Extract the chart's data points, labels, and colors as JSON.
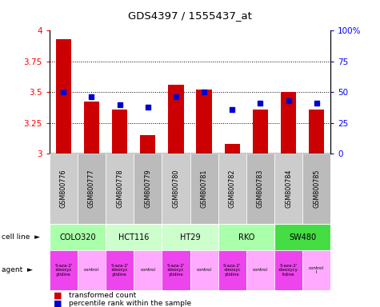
{
  "title": "GDS4397 / 1555437_at",
  "samples": [
    "GSM800776",
    "GSM800777",
    "GSM800778",
    "GSM800779",
    "GSM800780",
    "GSM800781",
    "GSM800782",
    "GSM800783",
    "GSM800784",
    "GSM800785"
  ],
  "bar_values": [
    3.93,
    3.42,
    3.36,
    3.15,
    3.56,
    3.52,
    3.08,
    3.36,
    3.5,
    3.36
  ],
  "dot_values": [
    50,
    46,
    40,
    38,
    46,
    50,
    36,
    41,
    43,
    41
  ],
  "ylim": [
    3.0,
    4.0
  ],
  "y2lim": [
    0,
    100
  ],
  "yticks": [
    3.0,
    3.25,
    3.5,
    3.75,
    4.0
  ],
  "ytick_labels": [
    "3",
    "3.25",
    "3.5",
    "3.75",
    "4"
  ],
  "y2ticks": [
    0,
    25,
    50,
    75,
    100
  ],
  "y2tick_labels": [
    "0",
    "25",
    "50",
    "75",
    "100%"
  ],
  "bar_color": "#cc0000",
  "dot_color": "#0000cc",
  "cell_line_data": [
    {
      "label": "COLO320",
      "start": 0,
      "end": 2,
      "color": "#aaffaa"
    },
    {
      "label": "HCT116",
      "start": 2,
      "end": 4,
      "color": "#ccffcc"
    },
    {
      "label": "HT29",
      "start": 4,
      "end": 6,
      "color": "#ccffcc"
    },
    {
      "label": "RKO",
      "start": 6,
      "end": 8,
      "color": "#aaffaa"
    },
    {
      "label": "SW480",
      "start": 8,
      "end": 10,
      "color": "#44dd44"
    }
  ],
  "agent_labels": [
    "5-aza-2'\n-deoxyc\nytidine",
    "control",
    "5-aza-2'\n-deoxyc\nytidine",
    "control",
    "5-aza-2'\n-deoxyc\nytidine",
    "control",
    "5-aza-2'\n-deoxyc\nytidine",
    "control",
    "5-aza-2'\n-deoxycy\ntidine",
    "control\nl"
  ],
  "agent_colors": [
    "#ee44ee",
    "#ffaaff",
    "#ee44ee",
    "#ffaaff",
    "#ee44ee",
    "#ffaaff",
    "#ee44ee",
    "#ffaaff",
    "#ee44ee",
    "#ffaaff"
  ],
  "gsm_alt_colors": [
    "#cccccc",
    "#bbbbbb"
  ],
  "legend_bar_label": "transformed count",
  "legend_dot_label": "percentile rank within the sample"
}
